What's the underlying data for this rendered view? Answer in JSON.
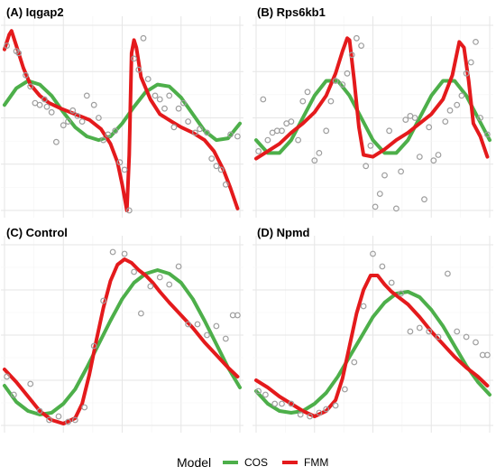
{
  "legend": {
    "title": "Model",
    "entries": [
      {
        "label": "COS",
        "color": "#4daf4a"
      },
      {
        "label": "FMM",
        "color": "#e41a1c"
      }
    ]
  },
  "chart_data": [
    {
      "type": "line",
      "title": "(A) Iqgap2",
      "xlabel": "",
      "ylabel": "",
      "xlim": [
        0,
        1
      ],
      "ylim": [
        0,
        1
      ],
      "grid": true,
      "point_color": "#9e9e9e",
      "points": {
        "x": [
          0.01,
          0.05,
          0.06,
          0.09,
          0.11,
          0.13,
          0.15,
          0.17,
          0.18,
          0.2,
          0.22,
          0.25,
          0.27,
          0.29,
          0.31,
          0.33,
          0.35,
          0.38,
          0.4,
          0.42,
          0.44,
          0.47,
          0.49,
          0.51,
          0.53,
          0.55,
          0.57,
          0.59,
          0.61,
          0.64,
          0.66,
          0.68,
          0.7,
          0.72,
          0.74,
          0.76,
          0.78,
          0.81,
          0.83,
          0.86,
          0.88,
          0.9,
          0.92,
          0.94,
          0.96,
          0.99
        ],
        "y": [
          0.89,
          0.86,
          0.85,
          0.73,
          0.67,
          0.58,
          0.57,
          0.6,
          0.56,
          0.53,
          0.37,
          0.46,
          0.48,
          0.54,
          0.51,
          0.48,
          0.62,
          0.57,
          0.5,
          0.38,
          0.41,
          0.43,
          0.26,
          0.22,
          0.0,
          0.82,
          0.76,
          0.93,
          0.71,
          0.62,
          0.6,
          0.55,
          0.62,
          0.45,
          0.55,
          0.58,
          0.48,
          0.42,
          0.44,
          0.42,
          0.28,
          0.24,
          0.22,
          0.14,
          0.41,
          0.4
        ]
      },
      "series": [
        {
          "name": "COS",
          "color": "#4daf4a",
          "x": [
            0.0,
            0.05,
            0.1,
            0.15,
            0.2,
            0.25,
            0.3,
            0.35,
            0.4,
            0.45,
            0.5,
            0.55,
            0.6,
            0.65,
            0.7,
            0.75,
            0.8,
            0.85,
            0.9,
            0.95,
            1.0
          ],
          "y": [
            0.57,
            0.66,
            0.7,
            0.68,
            0.62,
            0.53,
            0.45,
            0.4,
            0.38,
            0.4,
            0.47,
            0.56,
            0.64,
            0.68,
            0.67,
            0.61,
            0.52,
            0.43,
            0.38,
            0.39,
            0.47
          ]
        },
        {
          "name": "FMM",
          "color": "#e41a1c",
          "x": [
            0.0,
            0.02,
            0.03,
            0.05,
            0.08,
            0.11,
            0.15,
            0.19,
            0.24,
            0.3,
            0.36,
            0.41,
            0.45,
            0.48,
            0.5,
            0.52,
            0.53,
            0.54,
            0.55,
            0.56,
            0.58,
            0.62,
            0.66,
            0.71,
            0.75,
            0.8,
            0.85,
            0.89,
            0.93,
            0.96,
            0.99
          ],
          "y": [
            0.87,
            0.95,
            0.97,
            0.89,
            0.77,
            0.68,
            0.62,
            0.58,
            0.55,
            0.52,
            0.49,
            0.44,
            0.36,
            0.26,
            0.14,
            0.0,
            0.3,
            0.85,
            0.92,
            0.88,
            0.72,
            0.6,
            0.52,
            0.48,
            0.45,
            0.42,
            0.38,
            0.32,
            0.22,
            0.12,
            0.01
          ]
        }
      ]
    },
    {
      "type": "line",
      "title": "(B) Rps6kb1",
      "xlabel": "",
      "ylabel": "",
      "xlim": [
        0,
        1
      ],
      "ylim": [
        0,
        1
      ],
      "grid": true,
      "point_color": "#9e9e9e",
      "points": {
        "x": [
          0.01,
          0.03,
          0.05,
          0.07,
          0.09,
          0.11,
          0.13,
          0.15,
          0.18,
          0.2,
          0.22,
          0.25,
          0.27,
          0.3,
          0.32,
          0.34,
          0.37,
          0.39,
          0.41,
          0.43,
          0.45,
          0.47,
          0.49,
          0.51,
          0.53,
          0.55,
          0.57,
          0.6,
          0.62,
          0.64,
          0.66,
          0.68,
          0.7,
          0.72,
          0.74,
          0.76,
          0.78,
          0.81,
          0.83,
          0.86,
          0.88,
          0.9,
          0.92,
          0.94,
          0.96,
          0.99
        ],
        "y": [
          0.32,
          0.6,
          0.38,
          0.42,
          0.43,
          0.43,
          0.47,
          0.48,
          0.38,
          0.59,
          0.64,
          0.27,
          0.31,
          0.43,
          0.59,
          0.7,
          0.68,
          0.74,
          0.84,
          0.93,
          0.89,
          0.24,
          0.35,
          0.02,
          0.09,
          0.19,
          0.43,
          0.01,
          0.21,
          0.49,
          0.51,
          0.5,
          0.29,
          0.06,
          0.45,
          0.27,
          0.3,
          0.48,
          0.54,
          0.57,
          0.62,
          0.74,
          0.8,
          0.91,
          0.5,
          0.41
        ]
      },
      "series": [
        {
          "name": "COS",
          "color": "#4daf4a",
          "x": [
            0.0,
            0.05,
            0.1,
            0.15,
            0.2,
            0.25,
            0.3,
            0.35,
            0.4,
            0.45,
            0.5,
            0.55,
            0.6,
            0.65,
            0.7,
            0.75,
            0.8,
            0.85,
            0.9,
            0.95,
            1.0
          ],
          "y": [
            0.38,
            0.31,
            0.31,
            0.38,
            0.5,
            0.62,
            0.7,
            0.7,
            0.62,
            0.5,
            0.38,
            0.31,
            0.31,
            0.38,
            0.5,
            0.62,
            0.7,
            0.7,
            0.62,
            0.5,
            0.38
          ]
        },
        {
          "name": "FMM",
          "color": "#e41a1c",
          "x": [
            0.0,
            0.05,
            0.1,
            0.15,
            0.2,
            0.25,
            0.3,
            0.34,
            0.37,
            0.39,
            0.4,
            0.42,
            0.44,
            0.46,
            0.5,
            0.55,
            0.6,
            0.65,
            0.7,
            0.75,
            0.8,
            0.84,
            0.86,
            0.87,
            0.89,
            0.91,
            0.93,
            0.96,
            0.99
          ],
          "y": [
            0.28,
            0.32,
            0.36,
            0.42,
            0.47,
            0.53,
            0.62,
            0.74,
            0.86,
            0.93,
            0.92,
            0.7,
            0.45,
            0.3,
            0.29,
            0.33,
            0.38,
            0.42,
            0.47,
            0.52,
            0.6,
            0.73,
            0.85,
            0.91,
            0.88,
            0.7,
            0.47,
            0.4,
            0.29
          ]
        }
      ]
    },
    {
      "type": "line",
      "title": "(C) Control",
      "xlabel": "",
      "ylabel": "",
      "xlim": [
        0,
        1
      ],
      "ylim": [
        0,
        1
      ],
      "grid": true,
      "point_color": "#9e9e9e",
      "points": {
        "x": [
          0.01,
          0.04,
          0.11,
          0.15,
          0.19,
          0.23,
          0.27,
          0.3,
          0.34,
          0.38,
          0.42,
          0.46,
          0.51,
          0.55,
          0.58,
          0.62,
          0.66,
          0.7,
          0.74,
          0.78,
          0.82,
          0.86,
          0.9,
          0.94,
          0.97,
          0.99
        ],
        "y": [
          0.27,
          0.17,
          0.23,
          0.08,
          0.03,
          0.05,
          0.02,
          0.03,
          0.1,
          0.44,
          0.69,
          0.96,
          0.95,
          0.85,
          0.62,
          0.77,
          0.82,
          0.78,
          0.88,
          0.56,
          0.56,
          0.5,
          0.55,
          0.48,
          0.61,
          0.61
        ]
      },
      "series": [
        {
          "name": "COS",
          "color": "#4daf4a",
          "x": [
            0.0,
            0.05,
            0.1,
            0.15,
            0.2,
            0.25,
            0.3,
            0.35,
            0.4,
            0.45,
            0.5,
            0.55,
            0.6,
            0.65,
            0.7,
            0.75,
            0.8,
            0.85,
            0.9,
            0.95,
            1.0
          ],
          "y": [
            0.22,
            0.13,
            0.08,
            0.06,
            0.07,
            0.12,
            0.2,
            0.32,
            0.45,
            0.58,
            0.7,
            0.79,
            0.84,
            0.86,
            0.84,
            0.79,
            0.7,
            0.58,
            0.45,
            0.32,
            0.21
          ]
        },
        {
          "name": "FMM",
          "color": "#e41a1c",
          "x": [
            0.0,
            0.05,
            0.1,
            0.15,
            0.2,
            0.25,
            0.3,
            0.33,
            0.36,
            0.39,
            0.42,
            0.45,
            0.48,
            0.51,
            0.54,
            0.57,
            0.6,
            0.63,
            0.66,
            0.7,
            0.75,
            0.8,
            0.85,
            0.9,
            0.95,
            0.99
          ],
          "y": [
            0.31,
            0.24,
            0.16,
            0.08,
            0.03,
            0.01,
            0.04,
            0.12,
            0.28,
            0.47,
            0.65,
            0.8,
            0.89,
            0.92,
            0.9,
            0.86,
            0.83,
            0.79,
            0.74,
            0.68,
            0.61,
            0.54,
            0.46,
            0.39,
            0.32,
            0.27
          ]
        }
      ]
    },
    {
      "type": "line",
      "title": "(D) Npmd",
      "xlabel": "",
      "ylabel": "",
      "xlim": [
        0,
        1
      ],
      "ylim": [
        0,
        1
      ],
      "grid": true,
      "point_color": "#9e9e9e",
      "points": {
        "x": [
          0.01,
          0.04,
          0.08,
          0.11,
          0.15,
          0.19,
          0.23,
          0.27,
          0.3,
          0.34,
          0.38,
          0.42,
          0.46,
          0.5,
          0.54,
          0.58,
          0.62,
          0.66,
          0.7,
          0.74,
          0.78,
          0.82,
          0.86,
          0.9,
          0.94,
          0.97,
          0.99
        ],
        "y": [
          0.19,
          0.17,
          0.12,
          0.12,
          0.12,
          0.06,
          0.05,
          0.07,
          0.09,
          0.11,
          0.2,
          0.35,
          0.66,
          0.95,
          0.88,
          0.79,
          0.73,
          0.52,
          0.54,
          0.52,
          0.49,
          0.84,
          0.52,
          0.49,
          0.46,
          0.39,
          0.39
        ]
      },
      "series": [
        {
          "name": "COS",
          "color": "#4daf4a",
          "x": [
            0.0,
            0.05,
            0.1,
            0.15,
            0.2,
            0.25,
            0.3,
            0.35,
            0.4,
            0.45,
            0.5,
            0.55,
            0.6,
            0.65,
            0.7,
            0.75,
            0.8,
            0.85,
            0.9,
            0.95,
            1.0
          ],
          "y": [
            0.19,
            0.12,
            0.08,
            0.07,
            0.08,
            0.12,
            0.18,
            0.27,
            0.38,
            0.49,
            0.6,
            0.68,
            0.73,
            0.74,
            0.71,
            0.64,
            0.55,
            0.44,
            0.33,
            0.24,
            0.17
          ]
        },
        {
          "name": "FMM",
          "color": "#e41a1c",
          "x": [
            0.0,
            0.05,
            0.1,
            0.15,
            0.2,
            0.25,
            0.3,
            0.34,
            0.37,
            0.4,
            0.43,
            0.46,
            0.49,
            0.52,
            0.55,
            0.58,
            0.61,
            0.65,
            0.7,
            0.75,
            0.8,
            0.85,
            0.9,
            0.95,
            0.99
          ],
          "y": [
            0.25,
            0.21,
            0.16,
            0.12,
            0.08,
            0.05,
            0.08,
            0.14,
            0.26,
            0.44,
            0.62,
            0.75,
            0.83,
            0.83,
            0.78,
            0.74,
            0.71,
            0.67,
            0.6,
            0.52,
            0.45,
            0.38,
            0.32,
            0.27,
            0.22
          ]
        }
      ]
    }
  ]
}
